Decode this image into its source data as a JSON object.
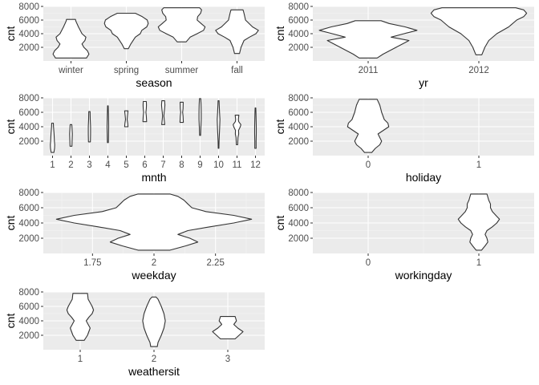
{
  "chart_data": [
    {
      "type": "violin",
      "xlabel": "season",
      "ylabel": "cnt",
      "x_axis": "categorical",
      "categories": [
        "winter",
        "spring",
        "summer",
        "fall"
      ],
      "ylim": [
        0,
        8000
      ],
      "yticks": [
        2000,
        4000,
        6000,
        8000
      ],
      "violins": [
        {
          "x": "winter",
          "min": 431,
          "max": 6100,
          "profile": [
            [
              431,
              0.62
            ],
            [
              1000,
              0.72
            ],
            [
              1500,
              0.66
            ],
            [
              2000,
              0.52
            ],
            [
              2500,
              0.44
            ],
            [
              3000,
              0.56
            ],
            [
              3500,
              0.6
            ],
            [
              4000,
              0.44
            ],
            [
              5000,
              0.3
            ],
            [
              5800,
              0.2
            ],
            [
              6100,
              0.18
            ]
          ]
        },
        {
          "x": "spring",
          "min": 1800,
          "max": 7000,
          "profile": [
            [
              1800,
              0.08
            ],
            [
              2500,
              0.18
            ],
            [
              3500,
              0.36
            ],
            [
              4000,
              0.56
            ],
            [
              4500,
              0.62
            ],
            [
              5000,
              0.82
            ],
            [
              5500,
              0.88
            ],
            [
              6000,
              0.84
            ],
            [
              6500,
              0.64
            ],
            [
              7000,
              0.36
            ]
          ]
        },
        {
          "x": "summer",
          "min": 2800,
          "max": 7800,
          "profile": [
            [
              2800,
              0.18
            ],
            [
              3500,
              0.34
            ],
            [
              4000,
              0.62
            ],
            [
              4500,
              0.88
            ],
            [
              5000,
              0.94
            ],
            [
              5500,
              0.78
            ],
            [
              6000,
              0.62
            ],
            [
              6500,
              0.64
            ],
            [
              7000,
              0.76
            ],
            [
              7500,
              0.8
            ],
            [
              7800,
              0.72
            ]
          ]
        },
        {
          "x": "fall",
          "min": 1100,
          "max": 7500,
          "profile": [
            [
              1100,
              0.1
            ],
            [
              2000,
              0.16
            ],
            [
              3000,
              0.28
            ],
            [
              3500,
              0.5
            ],
            [
              4000,
              0.76
            ],
            [
              4500,
              0.86
            ],
            [
              5000,
              0.62
            ],
            [
              6000,
              0.34
            ],
            [
              7000,
              0.28
            ],
            [
              7500,
              0.24
            ]
          ]
        }
      ]
    },
    {
      "type": "violin",
      "xlabel": "yr",
      "ylabel": "cnt",
      "x_axis": "categorical",
      "categories": [
        "2011",
        "2012"
      ],
      "ylim": [
        0,
        8000
      ],
      "yticks": [
        2000,
        4000,
        6000,
        8000
      ],
      "violins": [
        {
          "x": "2011",
          "min": 431,
          "max": 5900,
          "profile": [
            [
              431,
              0.18
            ],
            [
              1000,
              0.3
            ],
            [
              2000,
              0.56
            ],
            [
              3000,
              0.82
            ],
            [
              3500,
              0.46
            ],
            [
              4000,
              0.72
            ],
            [
              4500,
              0.98
            ],
            [
              5000,
              0.74
            ],
            [
              5500,
              0.42
            ],
            [
              5900,
              0.26
            ]
          ]
        },
        {
          "x": "2012",
          "min": 900,
          "max": 7800,
          "profile": [
            [
              900,
              0.06
            ],
            [
              2000,
              0.12
            ],
            [
              3000,
              0.2
            ],
            [
              4000,
              0.36
            ],
            [
              5000,
              0.6
            ],
            [
              6000,
              0.76
            ],
            [
              6500,
              0.9
            ],
            [
              7000,
              0.96
            ],
            [
              7500,
              0.9
            ],
            [
              7800,
              0.74
            ]
          ]
        }
      ]
    },
    {
      "type": "violin",
      "xlabel": "mnth",
      "ylabel": "cnt",
      "x_axis": "categorical",
      "categories": [
        "1",
        "2",
        "3",
        "4",
        "5",
        "6",
        "7",
        "8",
        "9",
        "10",
        "11",
        "12"
      ],
      "ylim": [
        0,
        8000
      ],
      "yticks": [
        2000,
        4000,
        6000,
        8000
      ],
      "violins": [
        {
          "x": "1",
          "min": 431,
          "max": 4500,
          "profile": [
            [
              431,
              0.16
            ],
            [
              1000,
              0.24
            ],
            [
              1500,
              0.26
            ],
            [
              2000,
              0.22
            ],
            [
              3000,
              0.18
            ],
            [
              4000,
              0.12
            ],
            [
              4500,
              0.1
            ]
          ]
        },
        {
          "x": "2",
          "min": 1300,
          "max": 4300,
          "profile": [
            [
              1300,
              0.12
            ],
            [
              2000,
              0.14
            ],
            [
              3000,
              0.16
            ],
            [
              4000,
              0.12
            ],
            [
              4300,
              0.1
            ]
          ]
        },
        {
          "x": "3",
          "min": 1900,
          "max": 6100,
          "profile": [
            [
              1900,
              0.12
            ],
            [
              3000,
              0.14
            ],
            [
              4000,
              0.14
            ],
            [
              5000,
              0.1
            ],
            [
              6100,
              0.08
            ]
          ]
        },
        {
          "x": "4",
          "min": 1800,
          "max": 6900,
          "profile": [
            [
              1800,
              0.06
            ],
            [
              3000,
              0.08
            ],
            [
              4000,
              0.1
            ],
            [
              5000,
              0.08
            ],
            [
              6000,
              0.06
            ],
            [
              6900,
              0.04
            ]
          ]
        },
        {
          "x": "5",
          "min": 4000,
          "max": 6200,
          "profile": [
            [
              4000,
              0.2
            ],
            [
              4500,
              0.16
            ],
            [
              5000,
              0.1
            ],
            [
              5500,
              0.14
            ],
            [
              6200,
              0.2
            ]
          ]
        },
        {
          "x": "6",
          "min": 4700,
          "max": 7500,
          "profile": [
            [
              4700,
              0.22
            ],
            [
              5500,
              0.18
            ],
            [
              6000,
              0.14
            ],
            [
              6500,
              0.18
            ],
            [
              7000,
              0.2
            ],
            [
              7500,
              0.18
            ]
          ]
        },
        {
          "x": "7",
          "min": 4300,
          "max": 7600,
          "profile": [
            [
              4300,
              0.18
            ],
            [
              5000,
              0.12
            ],
            [
              5500,
              0.08
            ],
            [
              6000,
              0.12
            ],
            [
              6500,
              0.16
            ],
            [
              7000,
              0.2
            ],
            [
              7600,
              0.16
            ]
          ]
        },
        {
          "x": "8",
          "min": 4600,
          "max": 7400,
          "profile": [
            [
              4600,
              0.2
            ],
            [
              5500,
              0.16
            ],
            [
              6000,
              0.12
            ],
            [
              6500,
              0.16
            ],
            [
              7400,
              0.18
            ]
          ]
        },
        {
          "x": "9",
          "min": 2800,
          "max": 7900,
          "profile": [
            [
              2800,
              0.06
            ],
            [
              4000,
              0.1
            ],
            [
              5000,
              0.14
            ],
            [
              6000,
              0.14
            ],
            [
              7000,
              0.12
            ],
            [
              7900,
              0.08
            ]
          ]
        },
        {
          "x": "10",
          "min": 1000,
          "max": 7600,
          "profile": [
            [
              1000,
              0.04
            ],
            [
              2000,
              0.06
            ],
            [
              3000,
              0.1
            ],
            [
              4000,
              0.14
            ],
            [
              5000,
              0.16
            ],
            [
              6000,
              0.12
            ],
            [
              7000,
              0.08
            ],
            [
              7600,
              0.06
            ]
          ]
        },
        {
          "x": "11",
          "min": 1500,
          "max": 5600,
          "profile": [
            [
              1500,
              0.08
            ],
            [
              2500,
              0.12
            ],
            [
              3000,
              0.2
            ],
            [
              3500,
              0.18
            ],
            [
              4000,
              0.4
            ],
            [
              4300,
              0.46
            ],
            [
              4700,
              0.2
            ],
            [
              5000,
              0.16
            ],
            [
              5600,
              0.22
            ]
          ]
        },
        {
          "x": "12",
          "min": 1000,
          "max": 6600,
          "profile": [
            [
              1000,
              0.08
            ],
            [
              2000,
              0.08
            ],
            [
              3000,
              0.1
            ],
            [
              4000,
              0.1
            ],
            [
              5000,
              0.08
            ],
            [
              6000,
              0.06
            ],
            [
              6600,
              0.04
            ]
          ]
        }
      ]
    },
    {
      "type": "violin",
      "xlabel": "holiday",
      "ylabel": "cnt",
      "x_axis": "continuous",
      "xlim": [
        -0.5,
        1.5
      ],
      "xticks": [
        0,
        1
      ],
      "ylim": [
        0,
        8000
      ],
      "yticks": [
        2000,
        4000,
        6000,
        8000
      ],
      "violins": [
        {
          "x": 0,
          "min": 431,
          "max": 7800,
          "profile": [
            [
              431,
              0.08
            ],
            [
              1000,
              0.16
            ],
            [
              1500,
              0.26
            ],
            [
              2000,
              0.3
            ],
            [
              2500,
              0.26
            ],
            [
              3000,
              0.22
            ],
            [
              3500,
              0.34
            ],
            [
              4000,
              0.46
            ],
            [
              4500,
              0.44
            ],
            [
              5000,
              0.36
            ],
            [
              6000,
              0.3
            ],
            [
              7000,
              0.26
            ],
            [
              7800,
              0.2
            ]
          ]
        }
      ]
    },
    {
      "type": "violin",
      "xlabel": "weekday",
      "ylabel": "cnt",
      "x_axis": "continuous",
      "xlim": [
        1.55,
        2.45
      ],
      "xticks": [
        1.75,
        2.0,
        2.25
      ],
      "ylim": [
        0,
        8000
      ],
      "yticks": [
        2000,
        4000,
        6000,
        8000
      ],
      "violins": [
        {
          "x": 2.0,
          "min": 431,
          "max": 7800,
          "profile": [
            [
              431,
              0.16
            ],
            [
              1000,
              0.32
            ],
            [
              1500,
              0.44
            ],
            [
              2000,
              0.36
            ],
            [
              2500,
              0.24
            ],
            [
              3000,
              0.34
            ],
            [
              3500,
              0.56
            ],
            [
              4000,
              0.8
            ],
            [
              4500,
              0.98
            ],
            [
              5000,
              0.8
            ],
            [
              5500,
              0.52
            ],
            [
              6000,
              0.38
            ],
            [
              6500,
              0.34
            ],
            [
              7000,
              0.3
            ],
            [
              7500,
              0.24
            ],
            [
              7800,
              0.16
            ]
          ]
        }
      ]
    },
    {
      "type": "violin",
      "xlabel": "workingday",
      "ylabel": "cnt",
      "x_axis": "continuous",
      "xlim": [
        -0.5,
        1.5
      ],
      "xticks": [
        0,
        1
      ],
      "ylim": [
        0,
        8000
      ],
      "yticks": [
        2000,
        4000,
        6000,
        8000
      ],
      "violins": [
        {
          "x": 1,
          "min": 431,
          "max": 7800,
          "profile": [
            [
              431,
              0.06
            ],
            [
              1000,
              0.14
            ],
            [
              1500,
              0.2
            ],
            [
              2000,
              0.18
            ],
            [
              2500,
              0.14
            ],
            [
              3000,
              0.18
            ],
            [
              3500,
              0.3
            ],
            [
              4000,
              0.4
            ],
            [
              4500,
              0.46
            ],
            [
              5000,
              0.38
            ],
            [
              5500,
              0.3
            ],
            [
              6000,
              0.26
            ],
            [
              6500,
              0.26
            ],
            [
              7000,
              0.22
            ],
            [
              7800,
              0.18
            ]
          ]
        }
      ]
    },
    {
      "type": "violin",
      "xlabel": "weathersit",
      "ylabel": "cnt",
      "x_axis": "categorical",
      "categories": [
        "1",
        "2",
        "3"
      ],
      "ylim": [
        0,
        8000
      ],
      "yticks": [
        2000,
        4000,
        6000,
        8000
      ],
      "violins": [
        {
          "x": "1",
          "min": 1300,
          "max": 7800,
          "profile": [
            [
              1300,
              0.12
            ],
            [
              2000,
              0.22
            ],
            [
              3000,
              0.3
            ],
            [
              3500,
              0.24
            ],
            [
              4000,
              0.18
            ],
            [
              4500,
              0.26
            ],
            [
              5000,
              0.36
            ],
            [
              5500,
              0.4
            ],
            [
              6000,
              0.36
            ],
            [
              6500,
              0.3
            ],
            [
              7000,
              0.24
            ],
            [
              7800,
              0.22
            ]
          ]
        },
        {
          "x": "2",
          "min": 431,
          "max": 7300,
          "profile": [
            [
              431,
              0.1
            ],
            [
              1000,
              0.12
            ],
            [
              2000,
              0.22
            ],
            [
              3000,
              0.3
            ],
            [
              4000,
              0.34
            ],
            [
              5000,
              0.3
            ],
            [
              6000,
              0.22
            ],
            [
              7000,
              0.12
            ],
            [
              7300,
              0.06
            ]
          ]
        },
        {
          "x": "3",
          "min": 1500,
          "max": 4600,
          "profile": [
            [
              1500,
              0.22
            ],
            [
              2000,
              0.34
            ],
            [
              2500,
              0.46
            ],
            [
              3000,
              0.3
            ],
            [
              3500,
              0.18
            ],
            [
              4000,
              0.26
            ],
            [
              4600,
              0.22
            ]
          ]
        }
      ]
    }
  ]
}
